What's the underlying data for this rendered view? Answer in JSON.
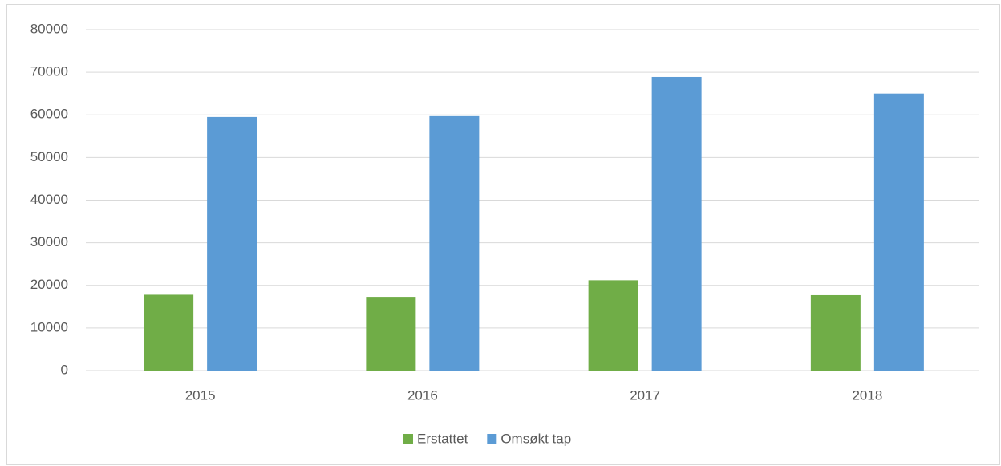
{
  "chart_data": {
    "type": "bar",
    "categories": [
      "2015",
      "2016",
      "2017",
      "2018"
    ],
    "series": [
      {
        "name": "Erstattet",
        "color": "#70ad47",
        "values": [
          17800,
          17300,
          21200,
          17700
        ]
      },
      {
        "name": "Omsøkt tap",
        "color": "#5b9bd5",
        "values": [
          59500,
          59700,
          68900,
          65000
        ]
      }
    ],
    "ylim": [
      0,
      80000
    ],
    "yticks": [
      0,
      10000,
      20000,
      30000,
      40000,
      50000,
      60000,
      70000,
      80000
    ],
    "grid": true,
    "legend": "bottom"
  }
}
